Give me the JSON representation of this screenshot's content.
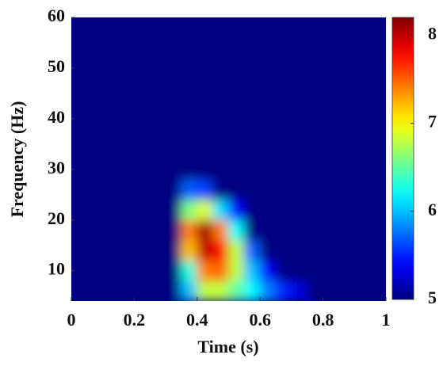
{
  "chart_data": {
    "type": "heatmap",
    "xlabel": "Time (s)",
    "ylabel": "Frequency (Hz)",
    "x": [
      0.025,
      0.075,
      0.125,
      0.175,
      0.225,
      0.275,
      0.325,
      0.375,
      0.425,
      0.475,
      0.525,
      0.575,
      0.625,
      0.675,
      0.725,
      0.775,
      0.825,
      0.875,
      0.925,
      0.975
    ],
    "y": [
      6,
      10,
      14,
      18,
      22,
      26,
      30,
      34,
      38,
      42,
      46,
      50,
      54,
      58
    ],
    "z": [
      [
        5,
        5,
        5,
        5,
        5,
        5,
        5,
        6.0,
        6.8,
        6.8,
        6.5,
        6.2,
        5.8,
        5.5,
        5.3,
        5,
        5,
        5,
        5,
        5
      ],
      [
        5,
        5,
        5,
        5,
        5,
        5,
        5,
        6.3,
        7.4,
        7.5,
        6.8,
        6.0,
        5.4,
        5,
        5,
        5,
        5,
        5,
        5,
        5
      ],
      [
        5,
        5,
        5,
        5,
        5,
        5,
        5,
        7.2,
        8.0,
        7.8,
        6.8,
        5.7,
        5,
        5,
        5,
        5,
        5,
        5,
        5,
        5
      ],
      [
        5,
        5,
        5,
        5,
        5,
        5,
        5,
        7.4,
        8.1,
        7.4,
        6.2,
        5,
        5,
        5,
        5,
        5,
        5,
        5,
        5,
        5
      ],
      [
        5,
        5,
        5,
        5,
        5,
        5,
        5,
        6.6,
        6.9,
        6.1,
        5.4,
        5,
        5,
        5,
        5,
        5,
        5,
        5,
        5,
        5
      ],
      [
        5,
        5,
        5,
        5,
        5,
        5,
        5,
        5.7,
        5.6,
        5,
        5,
        5,
        5,
        5,
        5,
        5,
        5,
        5,
        5,
        5
      ],
      [
        5,
        5,
        5,
        5,
        5,
        5,
        5,
        5,
        5,
        5,
        5,
        5,
        5,
        5,
        5,
        5,
        5,
        5,
        5,
        5
      ],
      [
        5,
        5,
        5,
        5,
        5,
        5,
        5,
        5,
        5,
        5,
        5,
        5,
        5,
        5,
        5,
        5,
        5,
        5,
        5,
        5
      ],
      [
        5,
        5,
        5,
        5,
        5,
        5,
        5,
        5,
        5,
        5,
        5,
        5,
        5,
        5,
        5,
        5,
        5,
        5,
        5,
        5
      ],
      [
        5,
        5,
        5,
        5,
        5,
        5,
        5,
        5,
        5,
        5,
        5,
        5,
        5,
        5,
        5,
        5,
        5,
        5,
        5,
        5
      ],
      [
        5,
        5,
        5,
        5,
        5,
        5,
        5,
        5,
        5,
        5,
        5,
        5,
        5,
        5,
        5,
        5,
        5,
        5,
        5,
        5
      ],
      [
        5,
        5,
        5,
        5,
        5,
        5,
        5,
        5,
        5,
        5,
        5,
        5,
        5,
        5,
        5,
        5,
        5,
        5,
        5,
        5
      ],
      [
        5,
        5,
        5,
        5,
        5,
        5,
        5,
        5,
        5,
        5,
        5,
        5,
        5,
        5,
        5,
        5,
        5,
        5,
        5,
        5
      ],
      [
        5,
        5,
        5,
        5,
        5,
        5,
        5,
        5,
        5,
        5,
        5,
        5,
        5,
        5,
        5,
        5,
        5,
        5,
        5,
        5
      ]
    ],
    "xlim": [
      0,
      1
    ],
    "xticks": [
      0,
      0.2,
      0.4,
      0.6,
      0.8,
      1
    ],
    "ylim": [
      4,
      60
    ],
    "yticks": [
      10,
      20,
      30,
      40,
      50,
      60
    ],
    "clim": [
      5,
      8.2
    ],
    "cticks": [
      5,
      6,
      7,
      8
    ],
    "colormap": "jet"
  }
}
